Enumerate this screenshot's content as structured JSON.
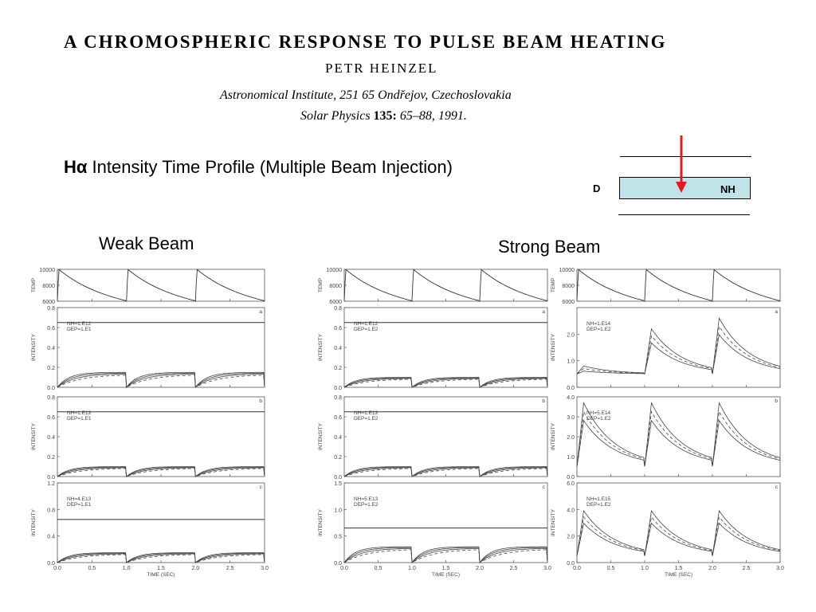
{
  "paper": {
    "title": "A CHROMOSPHERIC RESPONSE TO PULSE BEAM HEATING",
    "author": "PETR HEINZEL",
    "affiliation": "Astronomical Institute, 251 65 Ondřejov, Czechoslovakia",
    "journal": "Solar Physics",
    "volume": "135:",
    "pages_year": "65–88, 1991."
  },
  "heading": {
    "symbol": "Hα",
    "text": "Intensity Time Profile (Multiple Beam Injection)"
  },
  "diagram": {
    "d_label": "D",
    "nh_label": "NH",
    "arrow_color": "#e11b1b",
    "box_color": "#bfe3e9"
  },
  "labels": {
    "weak": "Weak Beam",
    "strong": "Strong Beam"
  },
  "chart_data": [
    {
      "type": "line",
      "name": "weak-beam",
      "xlabel": "TIME (SEC)",
      "xticks": [
        "0.0",
        "0.5",
        "1.0",
        "1.5",
        "2.0",
        "2.5",
        "3.0"
      ],
      "xlim": [
        0,
        3
      ],
      "panels": [
        {
          "kind": "temp",
          "ylabel": "TEMP",
          "ylim": [
            6000,
            10000
          ],
          "yticks": [
            "10000",
            "8000",
            "6000"
          ]
        },
        {
          "kind": "intensity",
          "tag": "a",
          "ylabel": "INTENSITY",
          "ylim": [
            0,
            0.8
          ],
          "yticks": [
            "0.8",
            "0.6",
            "0.4",
            "0.2",
            "0.0"
          ],
          "annotation": [
            "NH=1.E12",
            "DEP=1.E1"
          ],
          "flat": 0.65,
          "low": 0.15
        },
        {
          "kind": "intensity",
          "tag": "b",
          "ylabel": "INTENSITY",
          "ylim": [
            0,
            0.8
          ],
          "yticks": [
            "0.8",
            "0.6",
            "0.4",
            "0.2",
            "0.0"
          ],
          "annotation": [
            "NH=1.E13",
            "DEP=1.E1"
          ],
          "flat": 0.65,
          "low": 0.1
        },
        {
          "kind": "intensity",
          "tag": "c",
          "ylabel": "INTENSITY",
          "ylim": [
            0,
            1.2
          ],
          "yticks": [
            "1.2",
            "0.8",
            "0.4",
            "0.0"
          ],
          "annotation": [
            "NH=4.E13",
            "DEP=1.E1"
          ],
          "flat": 0.65,
          "low": 0.15
        }
      ]
    },
    {
      "type": "line",
      "name": "strong-beam-dep-1e2",
      "xlabel": "TIME (SEC)",
      "xticks": [
        "0.0",
        "0.5",
        "1.0",
        "1.5",
        "2.0",
        "2.5",
        "3.0"
      ],
      "xlim": [
        0,
        3
      ],
      "panels": [
        {
          "kind": "temp",
          "ylabel": "TEMP",
          "ylim": [
            6000,
            10000
          ],
          "yticks": [
            "10000",
            "8000",
            "6000"
          ]
        },
        {
          "kind": "intensity",
          "tag": "a",
          "ylabel": "INTENSITY",
          "ylim": [
            0,
            0.8
          ],
          "yticks": [
            "0.8",
            "0.6",
            "0.4",
            "0.2",
            "0.0"
          ],
          "annotation": [
            "NH=1.E12",
            "DEP=1.E2"
          ],
          "flat": 0.65,
          "low": 0.1
        },
        {
          "kind": "intensity",
          "tag": "b",
          "ylabel": "INTENSITY",
          "ylim": [
            0,
            0.8
          ],
          "yticks": [
            "0.8",
            "0.6",
            "0.4",
            "0.2",
            "0.0"
          ],
          "annotation": [
            "NH=1.E13",
            "DEP=1.E2"
          ],
          "flat": 0.65,
          "low": 0.1
        },
        {
          "kind": "intensity",
          "tag": "c",
          "ylabel": "INTENSITY",
          "ylim": [
            0,
            1.5
          ],
          "yticks": [
            "1.5",
            "1.0",
            "0.5",
            "0.0"
          ],
          "annotation": [
            "NH=5.E13",
            "DEP=1.E2"
          ],
          "flat": 0.65,
          "low": 0.3
        }
      ]
    },
    {
      "type": "line",
      "name": "strong-beam-dep-1e2-high-nh",
      "xlabel": "TIME (SEC)",
      "xticks": [
        "0.0",
        "0.5",
        "1.0",
        "1.5",
        "2.0",
        "2.5",
        "3.0"
      ],
      "xlim": [
        0,
        3
      ],
      "panels": [
        {
          "kind": "temp",
          "ylabel": "TEMP",
          "ylim": [
            6000,
            10000
          ],
          "yticks": [
            "10000",
            "8000",
            "6000"
          ]
        },
        {
          "kind": "intensity",
          "tag": "a",
          "ylabel": "INTENSITY",
          "ylim": [
            0,
            3.0
          ],
          "yticks": [
            "2.0",
            "1.0",
            "0.0"
          ],
          "annotation": [
            "NH=1.E14",
            "DEP=1.E2"
          ],
          "peaks": [
            0.8,
            2.2,
            2.6
          ]
        },
        {
          "kind": "intensity",
          "tag": "b",
          "ylabel": "INTENSITY",
          "ylim": [
            0,
            4.0
          ],
          "yticks": [
            "4.0",
            "3.0",
            "2.0",
            "1.0",
            "0.0"
          ],
          "annotation": [
            "NH=5.E14",
            "DEP=1.E2"
          ],
          "peaks": [
            3.7,
            3.7,
            3.7
          ]
        },
        {
          "kind": "intensity",
          "tag": "c",
          "ylabel": "INTENSITY",
          "ylim": [
            0,
            6.0
          ],
          "yticks": [
            "6.0",
            "4.0",
            "2.0",
            "0.0"
          ],
          "annotation": [
            "NH=1.E15",
            "DEP=1.E2"
          ],
          "peaks": [
            3.9,
            3.9,
            3.9
          ]
        }
      ]
    }
  ]
}
